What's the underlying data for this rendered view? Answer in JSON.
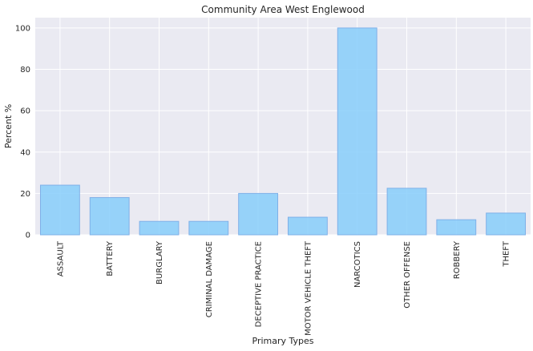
{
  "chart_data": {
    "type": "bar",
    "title": "Community Area West Englewood",
    "xlabel": "Primary Types",
    "ylabel": "Percent %",
    "categories": [
      "ASSAULT",
      "BATTERY",
      "BURGLARY",
      "CRIMINAL DAMAGE",
      "DECEPTIVE PRACTICE",
      "MOTOR VEHICLE THEFT",
      "NARCOTICS",
      "OTHER OFFENSE",
      "ROBBERY",
      "THEFT"
    ],
    "values": [
      24,
      18,
      6.5,
      6.5,
      20,
      8.5,
      100,
      22.5,
      7.3,
      10.5
    ],
    "yticks": [
      0,
      20,
      40,
      60,
      80,
      100
    ],
    "ylim": [
      0,
      105
    ],
    "grid": true,
    "colors": {
      "bar_fill": "#87CEFA",
      "bar_stroke": "#7FB0E8",
      "plot_bg": "#EAEAF2",
      "grid": "#FFFFFF"
    }
  }
}
